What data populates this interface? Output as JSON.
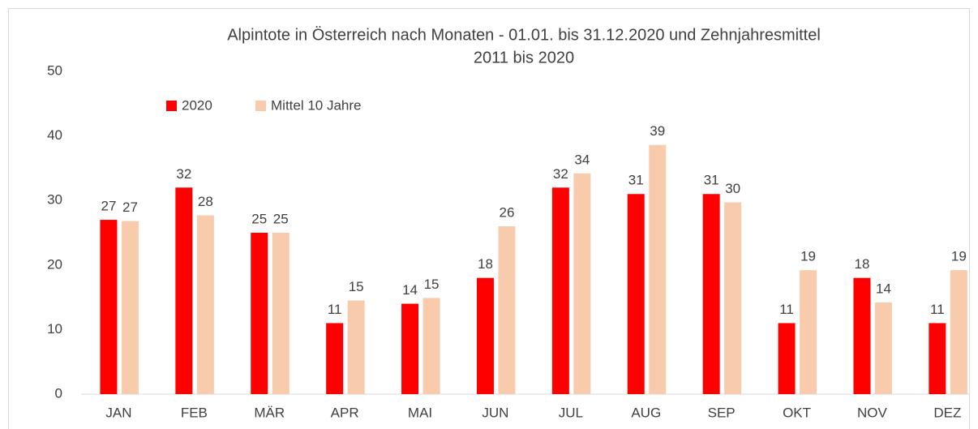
{
  "chart_data": {
    "type": "bar",
    "title": [
      "Alpintote in Österreich nach Monaten - 01.01. bis 31.12.2020 und Zehnjahresmittel",
      "2011 bis 2020"
    ],
    "categories": [
      "JAN",
      "FEB",
      "MÄR",
      "APR",
      "MAI",
      "JUN",
      "JUL",
      "AUG",
      "SEP",
      "OKT",
      "NOV",
      "DEZ"
    ],
    "series": [
      {
        "name": "2020",
        "color": "#ff0000",
        "values": [
          27,
          32,
          25,
          11,
          14,
          18,
          32,
          31,
          31,
          11,
          18,
          11
        ]
      },
      {
        "name": "Mittel 10 Jahre",
        "color": "#f8cbad",
        "values": [
          26.8,
          27.7,
          25,
          14.5,
          14.9,
          26,
          34.2,
          38.6,
          29.7,
          19.2,
          14.2,
          19.2
        ],
        "value_labels": [
          "27",
          "28",
          "25",
          "15",
          "15",
          "26",
          "34",
          "39",
          "30",
          "19",
          "14",
          "19"
        ]
      }
    ],
    "ylim": [
      0,
      50
    ],
    "yticks": [
      0,
      10,
      20,
      30,
      40,
      50
    ],
    "grid": false,
    "legend": "top-left"
  }
}
